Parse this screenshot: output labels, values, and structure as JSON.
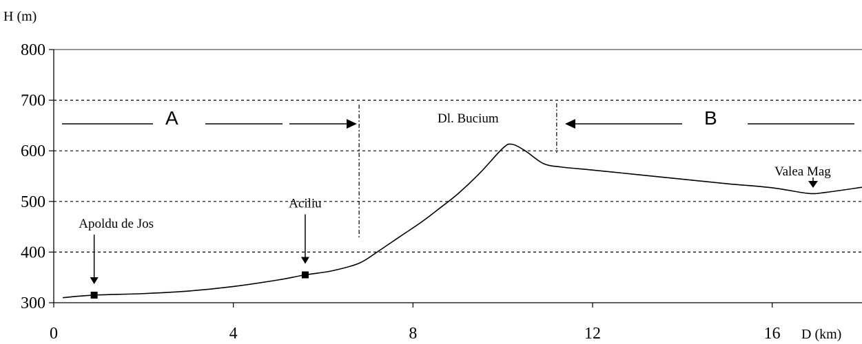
{
  "chart_data": {
    "type": "line",
    "xlabel": "D (km)",
    "ylabel": "H (m)",
    "xlim": [
      0,
      18
    ],
    "ylim": [
      300,
      800
    ],
    "x_ticks": [
      0,
      4,
      8,
      12,
      16
    ],
    "y_ticks": [
      300,
      400,
      500,
      600,
      700,
      800
    ],
    "grid": "horizontal dashed",
    "series": [
      {
        "x": [
          0.2,
          0.9,
          2.0,
          3.0,
          4.0,
          5.0,
          5.6,
          6.2,
          6.8,
          7.2,
          7.7,
          8.2,
          8.6,
          9.0,
          9.5,
          10.0,
          10.2,
          10.5,
          10.9,
          11.3,
          12.0,
          13.0,
          14.0,
          15.0,
          16.0,
          16.8,
          17.2,
          18.0
        ],
        "y": [
          310,
          315,
          318,
          323,
          332,
          345,
          355,
          363,
          378,
          400,
          430,
          460,
          487,
          515,
          557,
          605,
          613,
          600,
          575,
          568,
          562,
          553,
          544,
          535,
          527,
          516,
          518,
          528
        ]
      }
    ],
    "markers": [
      {
        "label": "Apoldu de Jos",
        "x": 0.9,
        "y": 315
      },
      {
        "label": "Aciliu",
        "x": 5.6,
        "y": 355
      }
    ],
    "annotations": [
      {
        "text": "Valea Mag",
        "x": 17.0,
        "y": 516
      },
      {
        "text": "Dl. Bucium"
      },
      {
        "text": "A"
      },
      {
        "text": "B"
      }
    ],
    "divider_lines_x": [
      6.8,
      11.2
    ]
  }
}
